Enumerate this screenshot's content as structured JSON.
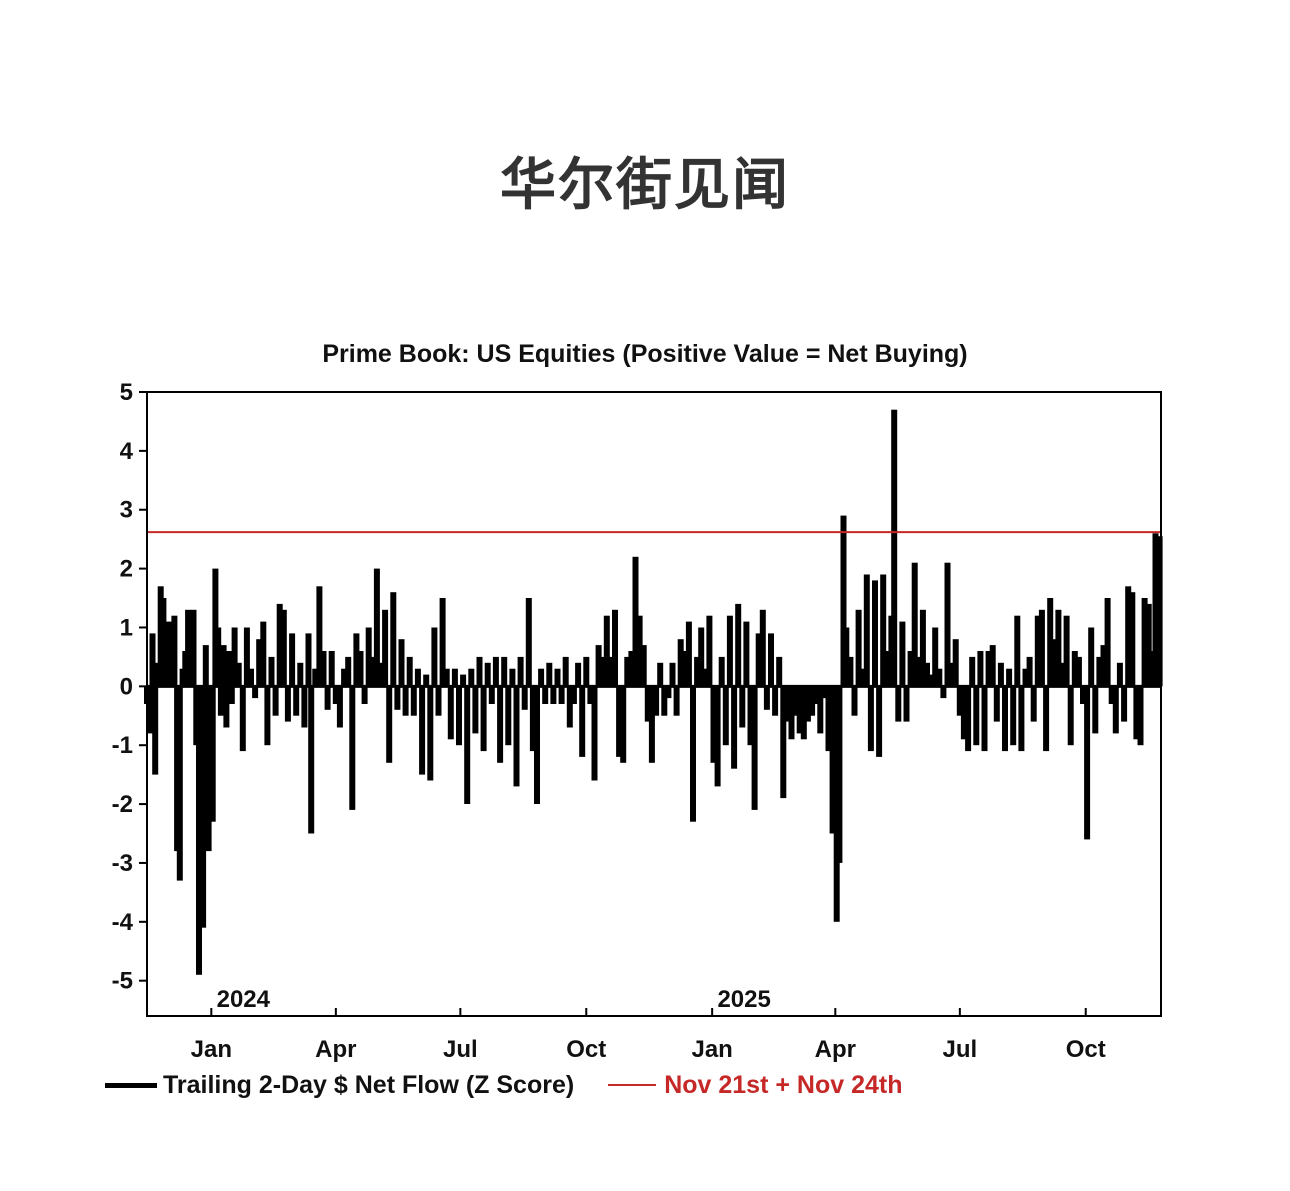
{
  "watermark": "华尔街见闻",
  "chart_data": {
    "type": "bar",
    "title": "Prime Book: US Equities (Positive Value = Net Buying)",
    "ylim": [
      -5.6,
      5
    ],
    "yticks": [
      5,
      4,
      3,
      2,
      1,
      0,
      -1,
      -2,
      -3,
      -4,
      -5
    ],
    "x_range": [
      "2023-11-15",
      "2025-11-25"
    ],
    "xticks": [
      {
        "date": "2024-01-01",
        "label": "Jan"
      },
      {
        "date": "2024-04-01",
        "label": "Apr"
      },
      {
        "date": "2024-07-01",
        "label": "Jul"
      },
      {
        "date": "2024-10-01",
        "label": "Oct"
      },
      {
        "date": "2025-01-01",
        "label": "Jan"
      },
      {
        "date": "2025-04-01",
        "label": "Apr"
      },
      {
        "date": "2025-07-01",
        "label": "Jul"
      },
      {
        "date": "2025-10-01",
        "label": "Oct"
      }
    ],
    "year_labels": [
      {
        "date": "2024-01-01",
        "label": "2024"
      },
      {
        "date": "2025-01-01",
        "label": "2025"
      }
    ],
    "reference_line": {
      "name": "Nov 21st + Nov 24th",
      "value": 2.62,
      "color": "#c62828"
    },
    "series": [
      {
        "name": "Trailing 2-Day $ Net Flow (Z Score)",
        "color": "#000000",
        "points": [
          [
            "2023-11-15",
            -0.3
          ],
          [
            "2023-11-17",
            -0.8
          ],
          [
            "2023-11-19",
            0.9
          ],
          [
            "2023-11-21",
            -1.5
          ],
          [
            "2023-11-23",
            0.4
          ],
          [
            "2023-11-25",
            1.7
          ],
          [
            "2023-11-27",
            1.5
          ],
          [
            "2023-11-29",
            0.6
          ],
          [
            "2023-12-01",
            1.1
          ],
          [
            "2023-12-03",
            0.5
          ],
          [
            "2023-12-05",
            1.2
          ],
          [
            "2023-12-07",
            -2.8
          ],
          [
            "2023-12-09",
            -3.3
          ],
          [
            "2023-12-11",
            0.3
          ],
          [
            "2023-12-13",
            0.6
          ],
          [
            "2023-12-15",
            1.3
          ],
          [
            "2023-12-17",
            0.4
          ],
          [
            "2023-12-19",
            1.3
          ],
          [
            "2023-12-21",
            -1.0
          ],
          [
            "2023-12-23",
            -4.9
          ],
          [
            "2023-12-26",
            -4.1
          ],
          [
            "2023-12-28",
            0.7
          ],
          [
            "2023-12-30",
            -2.8
          ],
          [
            "2024-01-02",
            -2.3
          ],
          [
            "2024-01-04",
            2.0
          ],
          [
            "2024-01-06",
            1.0
          ],
          [
            "2024-01-08",
            -0.5
          ],
          [
            "2024-01-10",
            0.7
          ],
          [
            "2024-01-12",
            -0.7
          ],
          [
            "2024-01-14",
            0.6
          ],
          [
            "2024-01-16",
            -0.3
          ],
          [
            "2024-01-18",
            1.0
          ],
          [
            "2024-01-21",
            0.4
          ],
          [
            "2024-01-24",
            -1.1
          ],
          [
            "2024-01-27",
            1.0
          ],
          [
            "2024-01-30",
            0.3
          ],
          [
            "2024-02-02",
            -0.2
          ],
          [
            "2024-02-05",
            0.8
          ],
          [
            "2024-02-08",
            1.1
          ],
          [
            "2024-02-11",
            -1.0
          ],
          [
            "2024-02-14",
            0.5
          ],
          [
            "2024-02-17",
            -0.5
          ],
          [
            "2024-02-20",
            1.4
          ],
          [
            "2024-02-23",
            1.3
          ],
          [
            "2024-02-26",
            -0.6
          ],
          [
            "2024-02-29",
            0.9
          ],
          [
            "2024-03-03",
            -0.5
          ],
          [
            "2024-03-06",
            0.4
          ],
          [
            "2024-03-09",
            -0.7
          ],
          [
            "2024-03-12",
            0.9
          ],
          [
            "2024-03-14",
            -2.5
          ],
          [
            "2024-03-17",
            0.3
          ],
          [
            "2024-03-20",
            1.7
          ],
          [
            "2024-03-23",
            0.6
          ],
          [
            "2024-03-26",
            -0.4
          ],
          [
            "2024-03-29",
            0.6
          ],
          [
            "2024-04-01",
            -0.3
          ],
          [
            "2024-04-04",
            -0.7
          ],
          [
            "2024-04-07",
            0.3
          ],
          [
            "2024-04-10",
            0.5
          ],
          [
            "2024-04-13",
            -2.1
          ],
          [
            "2024-04-16",
            0.9
          ],
          [
            "2024-04-19",
            0.6
          ],
          [
            "2024-04-22",
            -0.3
          ],
          [
            "2024-04-25",
            1.0
          ],
          [
            "2024-04-28",
            0.5
          ],
          [
            "2024-05-01",
            2.0
          ],
          [
            "2024-05-04",
            0.4
          ],
          [
            "2024-05-07",
            1.3
          ],
          [
            "2024-05-10",
            -1.3
          ],
          [
            "2024-05-13",
            1.6
          ],
          [
            "2024-05-16",
            -0.4
          ],
          [
            "2024-05-19",
            0.8
          ],
          [
            "2024-05-22",
            -0.5
          ],
          [
            "2024-05-25",
            0.5
          ],
          [
            "2024-05-28",
            -0.5
          ],
          [
            "2024-05-31",
            0.3
          ],
          [
            "2024-06-03",
            -1.5
          ],
          [
            "2024-06-06",
            0.2
          ],
          [
            "2024-06-09",
            -1.6
          ],
          [
            "2024-06-12",
            1.0
          ],
          [
            "2024-06-15",
            -0.5
          ],
          [
            "2024-06-18",
            1.5
          ],
          [
            "2024-06-21",
            0.3
          ],
          [
            "2024-06-24",
            -0.9
          ],
          [
            "2024-06-27",
            0.3
          ],
          [
            "2024-06-30",
            -1.0
          ],
          [
            "2024-07-03",
            0.2
          ],
          [
            "2024-07-06",
            -2.0
          ],
          [
            "2024-07-09",
            0.3
          ],
          [
            "2024-07-12",
            -0.8
          ],
          [
            "2024-07-15",
            0.5
          ],
          [
            "2024-07-18",
            -1.1
          ],
          [
            "2024-07-21",
            0.4
          ],
          [
            "2024-07-24",
            -0.3
          ],
          [
            "2024-07-27",
            0.5
          ],
          [
            "2024-07-30",
            -1.3
          ],
          [
            "2024-08-02",
            0.5
          ],
          [
            "2024-08-05",
            -1.0
          ],
          [
            "2024-08-08",
            0.3
          ],
          [
            "2024-08-11",
            -1.7
          ],
          [
            "2024-08-14",
            0.5
          ],
          [
            "2024-08-17",
            -0.4
          ],
          [
            "2024-08-20",
            1.5
          ],
          [
            "2024-08-23",
            -1.1
          ],
          [
            "2024-08-26",
            -2.0
          ],
          [
            "2024-08-29",
            0.3
          ],
          [
            "2024-09-01",
            -0.3
          ],
          [
            "2024-09-04",
            0.4
          ],
          [
            "2024-09-07",
            -0.3
          ],
          [
            "2024-09-10",
            0.3
          ],
          [
            "2024-09-13",
            -0.3
          ],
          [
            "2024-09-16",
            0.5
          ],
          [
            "2024-09-19",
            -0.7
          ],
          [
            "2024-09-22",
            -0.3
          ],
          [
            "2024-09-25",
            0.4
          ],
          [
            "2024-09-28",
            -1.2
          ],
          [
            "2024-10-01",
            0.5
          ],
          [
            "2024-10-04",
            -0.3
          ],
          [
            "2024-10-07",
            -1.6
          ],
          [
            "2024-10-10",
            0.7
          ],
          [
            "2024-10-13",
            0.5
          ],
          [
            "2024-10-16",
            1.2
          ],
          [
            "2024-10-19",
            0.5
          ],
          [
            "2024-10-22",
            1.3
          ],
          [
            "2024-10-25",
            -1.2
          ],
          [
            "2024-10-28",
            -1.3
          ],
          [
            "2024-10-31",
            0.5
          ],
          [
            "2024-11-03",
            0.6
          ],
          [
            "2024-11-06",
            2.2
          ],
          [
            "2024-11-09",
            1.2
          ],
          [
            "2024-11-12",
            0.7
          ],
          [
            "2024-11-15",
            -0.6
          ],
          [
            "2024-11-18",
            -1.3
          ],
          [
            "2024-11-21",
            -0.5
          ],
          [
            "2024-11-24",
            0.4
          ],
          [
            "2024-11-27",
            -0.5
          ],
          [
            "2024-11-30",
            -0.2
          ],
          [
            "2024-12-03",
            0.4
          ],
          [
            "2024-12-06",
            -0.5
          ],
          [
            "2024-12-09",
            0.8
          ],
          [
            "2024-12-12",
            0.6
          ],
          [
            "2024-12-15",
            1.1
          ],
          [
            "2024-12-18",
            -2.3
          ],
          [
            "2024-12-21",
            0.5
          ],
          [
            "2024-12-24",
            1.0
          ],
          [
            "2024-12-27",
            0.3
          ],
          [
            "2024-12-30",
            1.2
          ],
          [
            "2025-01-02",
            -1.3
          ],
          [
            "2025-01-05",
            -1.7
          ],
          [
            "2025-01-08",
            0.5
          ],
          [
            "2025-01-11",
            -1.0
          ],
          [
            "2025-01-14",
            1.2
          ],
          [
            "2025-01-17",
            -1.4
          ],
          [
            "2025-01-20",
            1.4
          ],
          [
            "2025-01-23",
            -0.7
          ],
          [
            "2025-01-26",
            1.1
          ],
          [
            "2025-01-29",
            -1.0
          ],
          [
            "2025-02-01",
            -2.1
          ],
          [
            "2025-02-04",
            0.9
          ],
          [
            "2025-02-07",
            1.3
          ],
          [
            "2025-02-10",
            -0.4
          ],
          [
            "2025-02-13",
            0.9
          ],
          [
            "2025-02-16",
            -0.5
          ],
          [
            "2025-02-19",
            0.5
          ],
          [
            "2025-02-22",
            -1.9
          ],
          [
            "2025-02-25",
            -0.6
          ],
          [
            "2025-02-28",
            -0.9
          ],
          [
            "2025-03-03",
            -0.5
          ],
          [
            "2025-03-06",
            -0.8
          ],
          [
            "2025-03-09",
            -0.9
          ],
          [
            "2025-03-12",
            -0.6
          ],
          [
            "2025-03-15",
            -0.5
          ],
          [
            "2025-03-18",
            -0.3
          ],
          [
            "2025-03-21",
            -0.8
          ],
          [
            "2025-03-24",
            -0.2
          ],
          [
            "2025-03-27",
            -1.1
          ],
          [
            "2025-03-30",
            -2.5
          ],
          [
            "2025-04-02",
            -4.0
          ],
          [
            "2025-04-04",
            -3.0
          ],
          [
            "2025-04-07",
            2.9
          ],
          [
            "2025-04-09",
            1.0
          ],
          [
            "2025-04-12",
            0.5
          ],
          [
            "2025-04-15",
            -0.5
          ],
          [
            "2025-04-18",
            1.3
          ],
          [
            "2025-04-21",
            0.3
          ],
          [
            "2025-04-24",
            1.9
          ],
          [
            "2025-04-27",
            -1.1
          ],
          [
            "2025-04-30",
            1.8
          ],
          [
            "2025-05-03",
            -1.2
          ],
          [
            "2025-05-06",
            1.9
          ],
          [
            "2025-05-09",
            0.6
          ],
          [
            "2025-05-12",
            1.2
          ],
          [
            "2025-05-14",
            4.7
          ],
          [
            "2025-05-17",
            -0.6
          ],
          [
            "2025-05-20",
            1.1
          ],
          [
            "2025-05-23",
            -0.6
          ],
          [
            "2025-05-26",
            0.6
          ],
          [
            "2025-05-29",
            2.1
          ],
          [
            "2025-06-01",
            0.5
          ],
          [
            "2025-06-04",
            1.3
          ],
          [
            "2025-06-07",
            0.4
          ],
          [
            "2025-06-10",
            0.2
          ],
          [
            "2025-06-13",
            1.0
          ],
          [
            "2025-06-16",
            0.3
          ],
          [
            "2025-06-19",
            -0.2
          ],
          [
            "2025-06-22",
            2.1
          ],
          [
            "2025-06-25",
            0.4
          ],
          [
            "2025-06-28",
            0.8
          ],
          [
            "2025-07-01",
            -0.5
          ],
          [
            "2025-07-04",
            -0.9
          ],
          [
            "2025-07-07",
            -1.1
          ],
          [
            "2025-07-10",
            0.5
          ],
          [
            "2025-07-13",
            -1.0
          ],
          [
            "2025-07-16",
            0.6
          ],
          [
            "2025-07-19",
            -1.1
          ],
          [
            "2025-07-22",
            0.6
          ],
          [
            "2025-07-25",
            0.7
          ],
          [
            "2025-07-28",
            -0.6
          ],
          [
            "2025-07-31",
            0.4
          ],
          [
            "2025-08-03",
            -1.1
          ],
          [
            "2025-08-06",
            0.3
          ],
          [
            "2025-08-09",
            -1.0
          ],
          [
            "2025-08-12",
            1.2
          ],
          [
            "2025-08-15",
            -1.1
          ],
          [
            "2025-08-18",
            0.3
          ],
          [
            "2025-08-21",
            0.5
          ],
          [
            "2025-08-24",
            -0.6
          ],
          [
            "2025-08-27",
            1.2
          ],
          [
            "2025-08-30",
            1.3
          ],
          [
            "2025-09-02",
            -1.1
          ],
          [
            "2025-09-05",
            1.5
          ],
          [
            "2025-09-08",
            0.8
          ],
          [
            "2025-09-11",
            1.3
          ],
          [
            "2025-09-14",
            0.4
          ],
          [
            "2025-09-17",
            1.2
          ],
          [
            "2025-09-20",
            -1.0
          ],
          [
            "2025-09-23",
            0.6
          ],
          [
            "2025-09-26",
            0.5
          ],
          [
            "2025-09-29",
            -0.3
          ],
          [
            "2025-10-02",
            -2.6
          ],
          [
            "2025-10-05",
            1.0
          ],
          [
            "2025-10-08",
            -0.8
          ],
          [
            "2025-10-11",
            0.5
          ],
          [
            "2025-10-14",
            0.7
          ],
          [
            "2025-10-17",
            1.5
          ],
          [
            "2025-10-20",
            -0.3
          ],
          [
            "2025-10-23",
            -0.8
          ],
          [
            "2025-10-26",
            0.4
          ],
          [
            "2025-10-29",
            -0.6
          ],
          [
            "2025-11-01",
            1.7
          ],
          [
            "2025-11-04",
            1.6
          ],
          [
            "2025-11-07",
            -0.9
          ],
          [
            "2025-11-10",
            -1.0
          ],
          [
            "2025-11-13",
            1.5
          ],
          [
            "2025-11-16",
            1.4
          ],
          [
            "2025-11-19",
            0.6
          ],
          [
            "2025-11-21",
            2.6
          ],
          [
            "2025-11-24",
            2.55
          ]
        ]
      }
    ]
  },
  "legend": {
    "series_label": "Trailing 2-Day $ Net Flow (Z Score)",
    "reference_label": "Nov 21st + Nov 24th"
  }
}
